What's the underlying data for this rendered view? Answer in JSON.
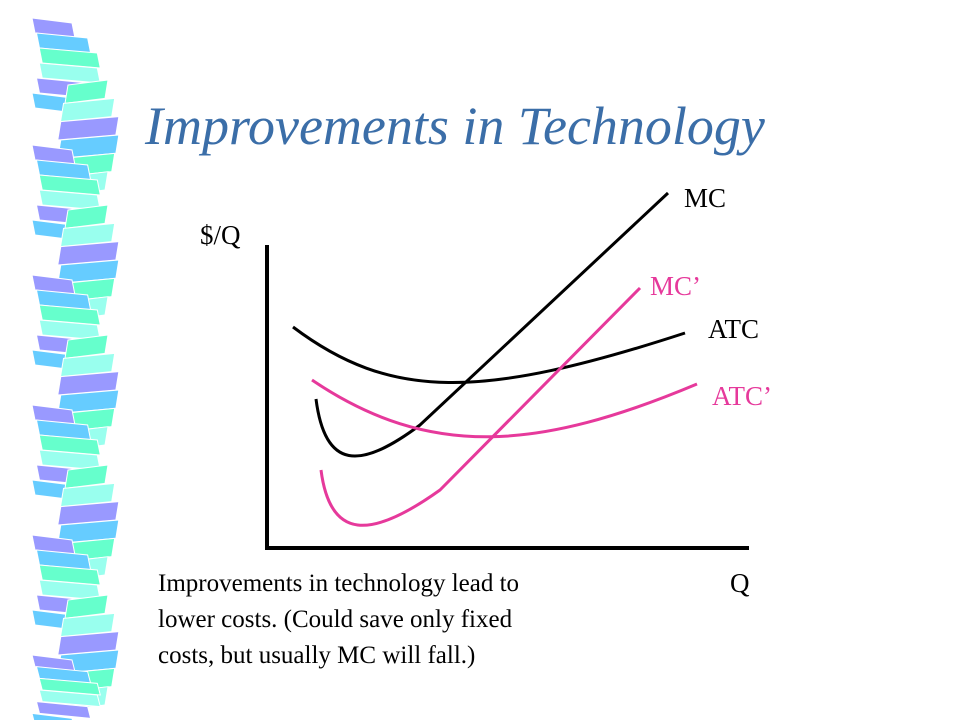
{
  "slide": {
    "title": "Improvements in Technology",
    "caption_lines": [
      "Improvements in technology lead to",
      "lower costs.  (Could save only fixed",
      "costs, but usually MC will fall.)"
    ]
  },
  "diagram": {
    "y_axis_label": "$/Q",
    "x_axis_label": "Q",
    "curves": [
      {
        "id": "mc",
        "label": "MC",
        "color": "#000000"
      },
      {
        "id": "mc-prime",
        "label": "MC’",
        "color": "#e6399b"
      },
      {
        "id": "atc",
        "label": "ATC",
        "color": "#000000"
      },
      {
        "id": "atc-prime",
        "label": "ATC’",
        "color": "#e6399b"
      }
    ]
  },
  "decoration": {
    "ribbon_colors": [
      "#9999ff",
      "#66ccff",
      "#66ffcc",
      "#99ffee"
    ]
  }
}
